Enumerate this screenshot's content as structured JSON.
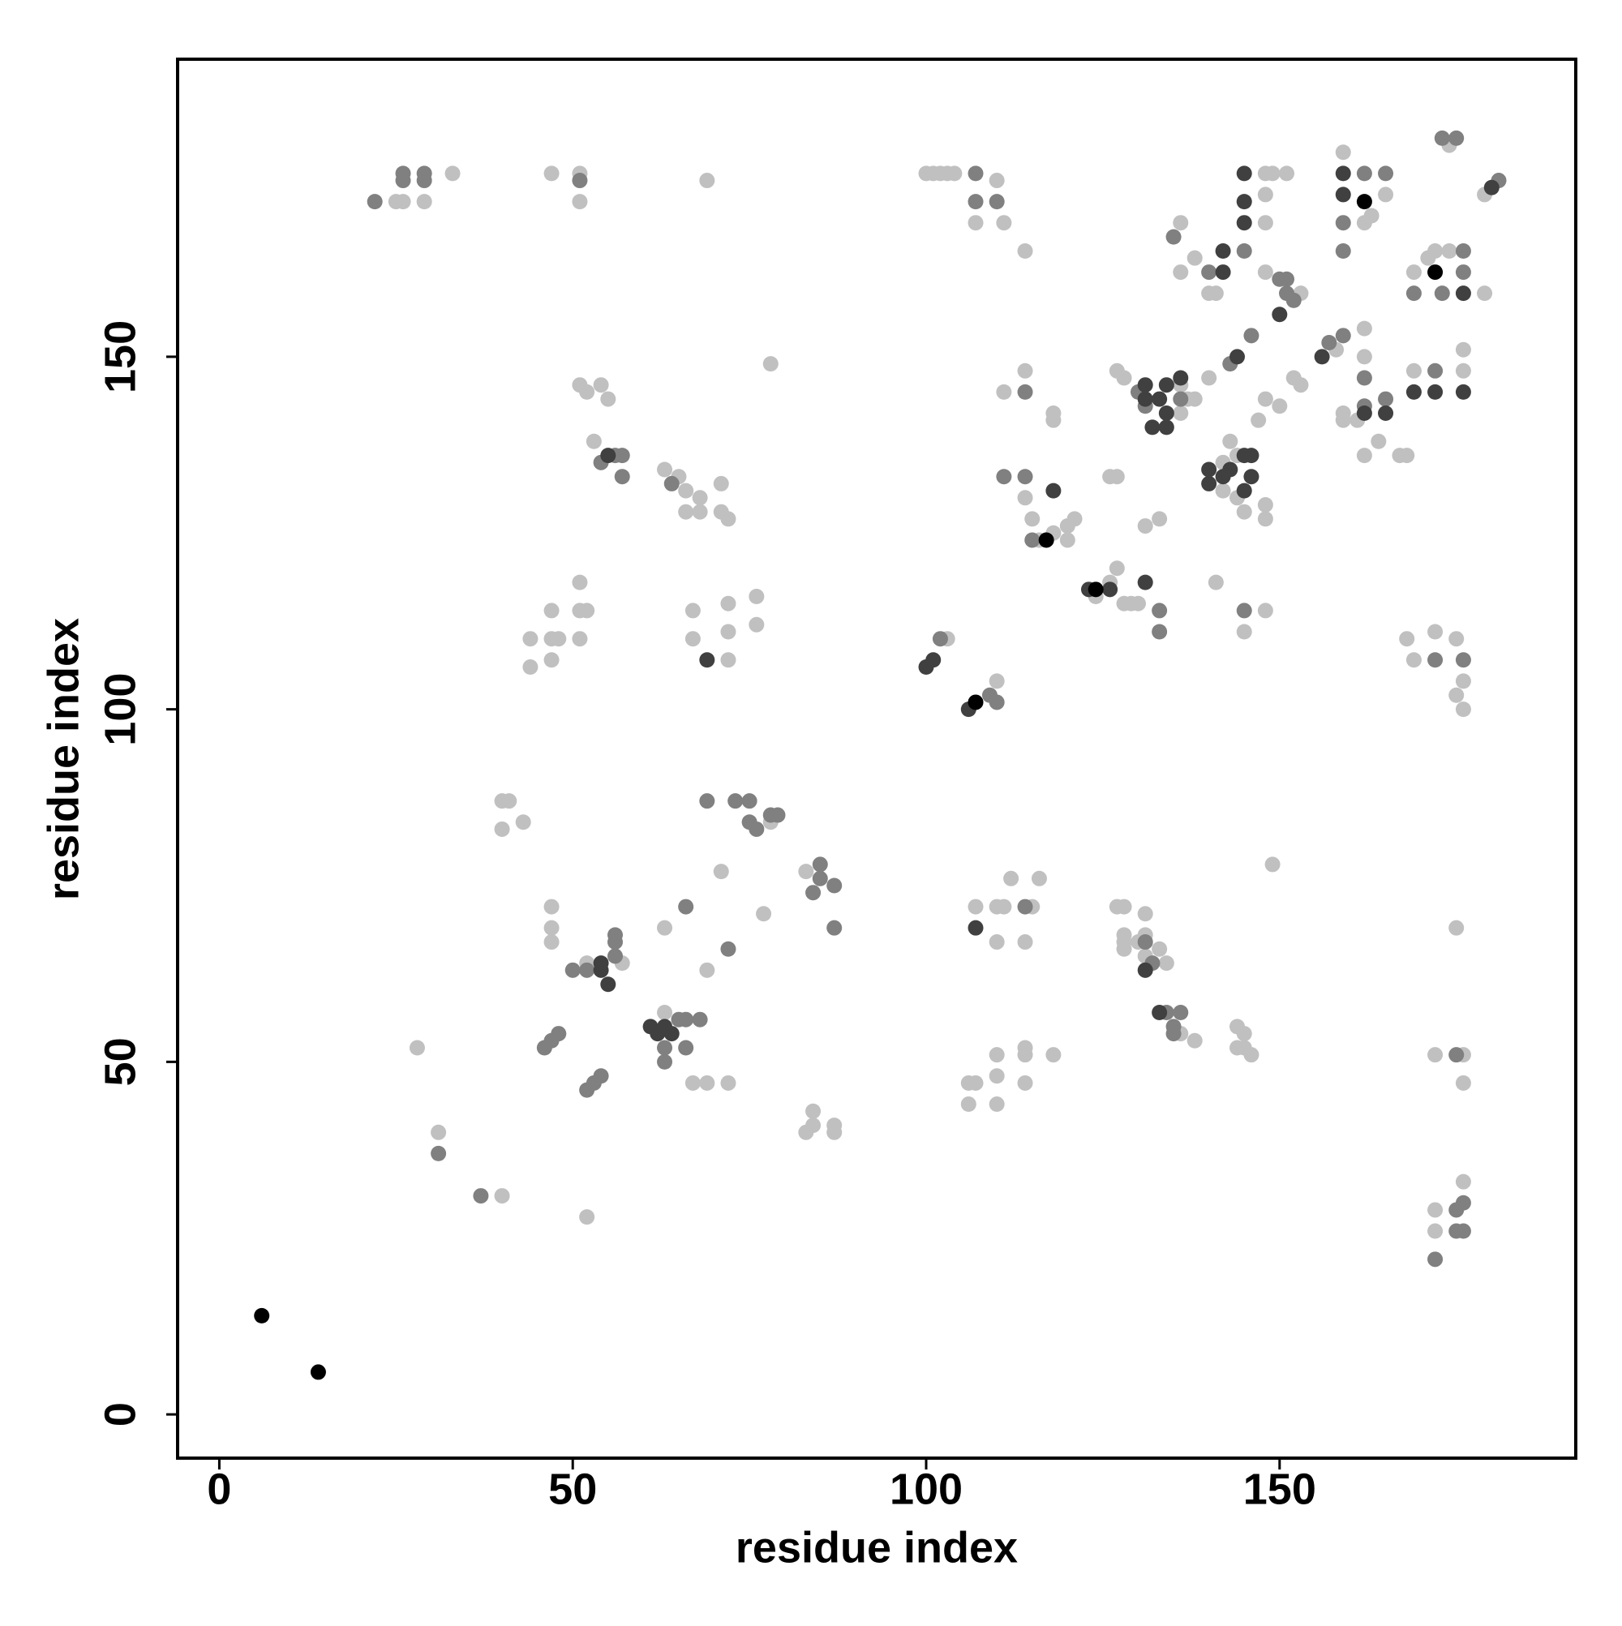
{
  "chart_data": {
    "type": "scatter",
    "xlabel": "residue index",
    "ylabel": "residue index",
    "xlim": [
      -5.9,
      191.9
    ],
    "ylim": [
      -6.2,
      192.2
    ],
    "xticks": [
      0,
      50,
      100,
      150
    ],
    "yticks": [
      0,
      50,
      100,
      150
    ],
    "grid": false,
    "series": [
      {
        "color": "#c0c0c0",
        "x": [
          33,
          25,
          26,
          29,
          47,
          51,
          51,
          69,
          100,
          101,
          102,
          103,
          104,
          107,
          110,
          111,
          114,
          148,
          149,
          151,
          148,
          148,
          159,
          162,
          163,
          165,
          174,
          179,
          136,
          138,
          136,
          141,
          140,
          148,
          153,
          169,
          172,
          179,
          171,
          174,
          140,
          136,
          137,
          148,
          150,
          147,
          153,
          152,
          158,
          162,
          161,
          159,
          159,
          162,
          164,
          167,
          168,
          169,
          176,
          176,
          162,
          127,
          128,
          136,
          138,
          143,
          142,
          144,
          145,
          148,
          148,
          144,
          142,
          133,
          131,
          114,
          115,
          116,
          118,
          120,
          121,
          120,
          118,
          118,
          114,
          111,
          126,
          127,
          128,
          129,
          130,
          124,
          126,
          127,
          141,
          145,
          148,
          103,
          110,
          168,
          169,
          172,
          175,
          176,
          175,
          176,
          51,
          52,
          54,
          55,
          53,
          63,
          65,
          66,
          68,
          66,
          68,
          71,
          71,
          72,
          51,
          47,
          44,
          47,
          47,
          44,
          51,
          52,
          51,
          48,
          67,
          67,
          72,
          72,
          72,
          76,
          76,
          40,
          41,
          40,
          43,
          78,
          83,
          71,
          77,
          47,
          47,
          47,
          63,
          69,
          52,
          57,
          63,
          67,
          69,
          72,
          28,
          31,
          40,
          52,
          83,
          84,
          84,
          87,
          87,
          107,
          110,
          111,
          112,
          116,
          115,
          110,
          114,
          127,
          128,
          131,
          128,
          128,
          130,
          131,
          131,
          133,
          134,
          128,
          136,
          138,
          144,
          145,
          144,
          145,
          146,
          149,
          106,
          107,
          110,
          110,
          110,
          106,
          114,
          114,
          114,
          118,
          172,
          176,
          176,
          172,
          172,
          176,
          175,
          78
        ],
        "values": [
          176,
          172,
          172,
          172,
          176,
          176,
          172,
          175,
          176,
          176,
          176,
          176,
          176,
          169,
          175,
          169,
          165,
          176,
          176,
          176,
          173,
          169,
          179,
          169,
          170,
          173,
          180,
          173,
          169,
          164,
          162,
          159,
          159,
          162,
          159,
          162,
          165,
          159,
          164,
          165,
          147,
          146,
          144,
          144,
          143,
          141,
          146,
          147,
          151,
          150,
          141,
          142,
          141,
          136,
          138,
          136,
          136,
          148,
          151,
          148,
          154,
          148,
          147,
          142,
          144,
          138,
          131,
          130,
          128,
          129,
          127,
          136,
          135,
          127,
          126,
          130,
          127,
          124,
          125,
          126,
          127,
          124,
          142,
          141,
          148,
          145,
          118,
          120,
          115,
          115,
          115,
          116,
          133,
          133,
          118,
          111,
          114,
          110,
          104,
          110,
          107,
          111,
          110,
          104,
          102,
          100,
          146,
          145,
          146,
          144,
          138,
          134,
          133,
          131,
          130,
          128,
          128,
          132,
          128,
          127,
          118,
          114,
          110,
          110,
          107,
          106,
          114,
          114,
          110,
          110,
          114,
          110,
          115,
          111,
          107,
          116,
          112,
          87,
          87,
          83,
          84,
          84,
          77,
          77,
          71,
          72,
          69,
          67,
          69,
          63,
          64,
          64,
          57,
          47,
          47,
          47,
          52,
          40,
          31,
          28,
          40,
          43,
          41,
          41,
          40,
          72,
          72,
          72,
          76,
          76,
          72,
          67,
          67,
          72,
          72,
          71,
          68,
          66,
          67,
          68,
          65,
          66,
          64,
          67,
          54,
          53,
          55,
          54,
          52,
          52,
          51,
          78,
          47,
          47,
          51,
          48,
          44,
          44,
          52,
          51,
          47,
          51,
          51,
          51,
          47,
          29,
          26,
          33,
          69,
          149
        ]
      },
      {
        "color": "#808080",
        "x": [
          26,
          29,
          26,
          29,
          22,
          51,
          107,
          107,
          110,
          145,
          159,
          159,
          162,
          165,
          173,
          175,
          181,
          135,
          140,
          150,
          151,
          152,
          151,
          169,
          173,
          176,
          176,
          146,
          143,
          157,
          159,
          162,
          162,
          165,
          172,
          130,
          131,
          136,
          114,
          111,
          115,
          114,
          133,
          133,
          145,
          102,
          109,
          110,
          172,
          176,
          54,
          57,
          57,
          56,
          64,
          69,
          73,
          75,
          75,
          76,
          78,
          79,
          85,
          85,
          84,
          87,
          87,
          66,
          72,
          50,
          52,
          56,
          56,
          56,
          65,
          66,
          68,
          63,
          63,
          66,
          46,
          47,
          48,
          52,
          53,
          54,
          31,
          37,
          114,
          132,
          131,
          134,
          136,
          135,
          135,
          175,
          172,
          175,
          176,
          175,
          176
        ],
        "values": [
          176,
          176,
          175,
          175,
          172,
          175,
          176,
          172,
          172,
          165,
          169,
          165,
          176,
          176,
          181,
          181,
          175,
          167,
          162,
          161,
          159,
          158,
          161,
          159,
          159,
          165,
          162,
          153,
          149,
          152,
          153,
          147,
          143,
          144,
          148,
          145,
          143,
          144,
          133,
          133,
          124,
          145,
          114,
          111,
          114,
          110,
          102,
          101,
          107,
          107,
          135,
          136,
          133,
          136,
          132,
          87,
          87,
          87,
          84,
          83,
          85,
          85,
          78,
          76,
          74,
          75,
          69,
          72,
          66,
          63,
          63,
          67,
          65,
          68,
          56,
          56,
          56,
          52,
          50,
          52,
          52,
          53,
          54,
          46,
          47,
          48,
          37,
          31,
          72,
          64,
          67,
          57,
          57,
          55,
          54,
          51,
          22,
          29,
          30,
          26,
          26
        ]
      },
      {
        "color": "#404040",
        "x": [
          145,
          145,
          145,
          142,
          159,
          159,
          180,
          142,
          150,
          176,
          144,
          156,
          165,
          162,
          169,
          172,
          176,
          131,
          131,
          132,
          134,
          134,
          134,
          136,
          133,
          140,
          140,
          142,
          143,
          145,
          145,
          146,
          146,
          118,
          123,
          126,
          131,
          100,
          101,
          106,
          69,
          55,
          54,
          55,
          54,
          61,
          62,
          63,
          64,
          107,
          131,
          133
        ],
        "values": [
          176,
          172,
          169,
          165,
          176,
          173,
          174,
          162,
          156,
          159,
          150,
          150,
          142,
          142,
          145,
          145,
          145,
          146,
          144,
          140,
          146,
          142,
          140,
          147,
          144,
          134,
          132,
          133,
          134,
          136,
          131,
          136,
          133,
          131,
          117,
          117,
          118,
          106,
          107,
          100,
          107,
          136,
          64,
          61,
          63,
          55,
          54,
          55,
          54,
          69,
          63,
          57
        ]
      },
      {
        "color": "#000000",
        "x": [
          6,
          14,
          162,
          172,
          117,
          124,
          107
        ],
        "values": [
          14,
          6,
          172,
          162,
          124,
          117,
          101
        ]
      }
    ]
  }
}
